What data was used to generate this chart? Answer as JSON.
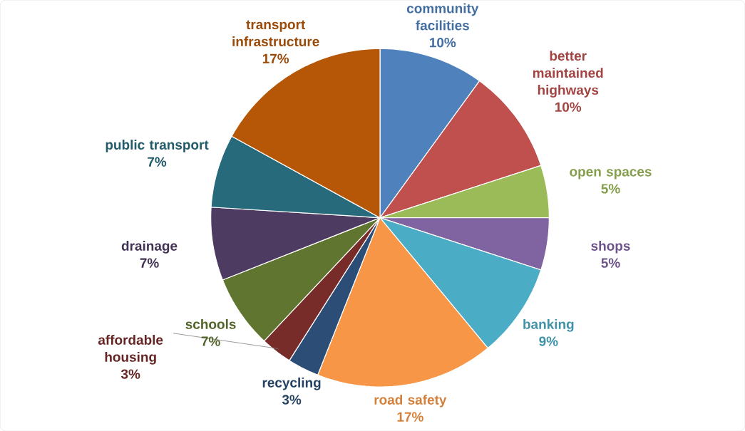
{
  "chart_data": {
    "type": "pie",
    "categories": [
      "community facilities",
      "better maintained highways",
      "open spaces",
      "shops",
      "banking",
      "road safety",
      "recycling",
      "affordable housing",
      "schools",
      "drainage",
      "public transport",
      "transport infrastructure"
    ],
    "values": [
      10,
      10,
      5,
      5,
      9,
      17,
      3,
      3,
      7,
      7,
      7,
      17
    ],
    "value_labels": [
      "10%",
      "10%",
      "5%",
      "5%",
      "9%",
      "17%",
      "3%",
      "3%",
      "7%",
      "7%",
      "7%",
      "17%"
    ],
    "colors": [
      "#4f81bd",
      "#c0504d",
      "#9bbb59",
      "#8064a2",
      "#4bacc6",
      "#f79646",
      "#2c4d75",
      "#772c2a",
      "#5f7530",
      "#4d3b62",
      "#276a7c",
      "#b65708"
    ],
    "data_labels": true
  }
}
